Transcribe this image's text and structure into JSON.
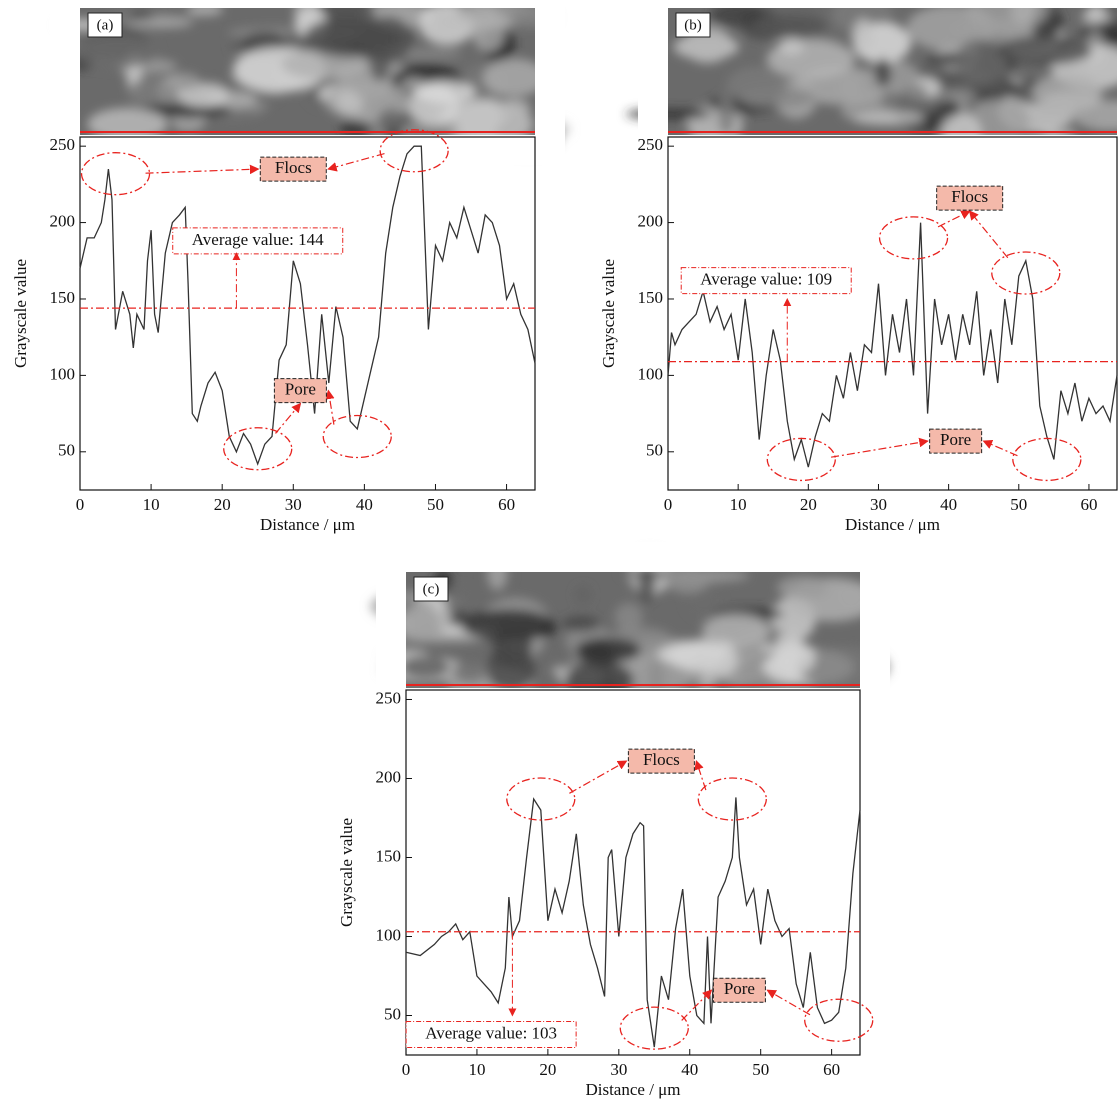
{
  "chart_data": [
    {
      "type": "line",
      "panel_label": "(a)",
      "x_label": "Distance / μm",
      "y_label": "Grayscale value",
      "color": "#333333",
      "x": [
        0,
        1,
        2,
        3,
        3.5,
        4,
        4.5,
        5,
        6,
        7,
        7.5,
        8,
        9,
        9.5,
        10,
        10.5,
        11,
        12,
        13,
        14,
        14.8,
        15.2,
        15.8,
        16.5,
        17,
        18,
        19,
        20,
        21,
        22,
        23,
        24,
        25,
        26,
        27,
        28,
        29,
        30,
        31,
        32,
        33,
        34,
        35,
        36,
        37,
        38,
        39,
        40,
        41,
        42,
        43,
        44,
        45,
        46,
        47,
        48,
        49,
        50,
        51,
        52,
        53,
        54,
        55,
        56,
        57,
        58,
        59,
        60,
        61,
        62,
        63,
        64
      ],
      "values": [
        170,
        190,
        190,
        200,
        215,
        235,
        215,
        130,
        155,
        140,
        118,
        140,
        130,
        175,
        195,
        140,
        128,
        180,
        200,
        205,
        210,
        160,
        75,
        70,
        80,
        95,
        102,
        90,
        60,
        50,
        62,
        55,
        42,
        55,
        60,
        110,
        120,
        175,
        160,
        120,
        75,
        140,
        95,
        145,
        125,
        70,
        65,
        85,
        105,
        125,
        180,
        210,
        230,
        245,
        250,
        250,
        130,
        185,
        175,
        200,
        190,
        210,
        195,
        180,
        205,
        200,
        185,
        150,
        160,
        140,
        130,
        108
      ],
      "xlim": [
        0,
        64
      ],
      "ylim": [
        25,
        256
      ],
      "xticks": [
        0,
        10,
        20,
        30,
        40,
        50,
        60
      ],
      "yticks": [
        50,
        100,
        150,
        200,
        250
      ],
      "average": {
        "value": 144,
        "label": "Average value: 144"
      },
      "annotations": [
        "Flocs",
        "Pore"
      ]
    },
    {
      "type": "line",
      "panel_label": "(b)",
      "x_label": "Distance / μm",
      "y_label": "Grayscale value",
      "color": "#333333",
      "x": [
        0,
        0.5,
        1,
        2,
        3,
        4,
        5,
        6,
        7,
        8,
        9,
        10,
        11,
        12,
        13,
        14,
        15,
        16,
        17,
        18,
        19,
        20,
        21,
        22,
        23,
        24,
        25,
        26,
        27,
        28,
        29,
        30,
        31,
        32,
        33,
        34,
        35,
        36,
        37,
        38,
        39,
        40,
        41,
        42,
        43,
        44,
        45,
        46,
        47,
        48,
        49,
        50,
        51,
        52,
        53,
        54,
        55,
        56,
        57,
        58,
        59,
        60,
        61,
        62,
        63,
        64
      ],
      "values": [
        100,
        128,
        120,
        130,
        135,
        140,
        155,
        135,
        145,
        130,
        140,
        110,
        150,
        115,
        58,
        100,
        130,
        110,
        70,
        45,
        58,
        40,
        60,
        75,
        70,
        100,
        85,
        115,
        90,
        120,
        115,
        160,
        100,
        140,
        115,
        150,
        100,
        200,
        75,
        150,
        120,
        140,
        110,
        140,
        120,
        155,
        100,
        130,
        95,
        150,
        120,
        165,
        175,
        150,
        80,
        60,
        45,
        90,
        75,
        95,
        70,
        85,
        75,
        80,
        70,
        100
      ],
      "xlim": [
        0,
        64
      ],
      "ylim": [
        25,
        256
      ],
      "xticks": [
        0,
        10,
        20,
        30,
        40,
        50,
        60
      ],
      "yticks": [
        50,
        100,
        150,
        200,
        250
      ],
      "average": {
        "value": 109,
        "label": "Average value: 109"
      },
      "annotations": [
        "Flocs",
        "Pore"
      ]
    },
    {
      "type": "line",
      "panel_label": "(c)",
      "x_label": "Distance / μm",
      "y_label": "Grayscale value",
      "color": "#333333",
      "x": [
        0,
        2,
        4,
        5,
        6,
        7,
        8,
        9,
        10,
        11,
        12,
        13,
        14,
        14.5,
        15,
        16,
        17,
        18,
        19,
        20,
        21,
        22,
        23,
        24,
        25,
        26,
        27,
        28,
        28.5,
        29,
        30,
        31,
        32,
        33,
        33.5,
        34,
        35,
        36,
        37,
        38,
        39,
        40,
        41,
        42,
        42.5,
        43,
        44,
        45,
        46,
        46.5,
        47,
        48,
        49,
        50,
        51,
        52,
        53,
        54,
        55,
        56,
        57,
        58,
        59,
        60,
        61,
        62,
        63,
        64
      ],
      "values": [
        90,
        88,
        95,
        100,
        103,
        108,
        98,
        103,
        75,
        70,
        65,
        58,
        80,
        125,
        100,
        110,
        150,
        187,
        180,
        110,
        130,
        115,
        135,
        165,
        120,
        95,
        80,
        62,
        150,
        155,
        100,
        150,
        165,
        172,
        170,
        60,
        30,
        75,
        60,
        105,
        130,
        75,
        50,
        45,
        100,
        45,
        125,
        135,
        150,
        188,
        150,
        120,
        130,
        95,
        130,
        110,
        100,
        105,
        70,
        55,
        90,
        55,
        45,
        47,
        52,
        80,
        140,
        180
      ],
      "xlim": [
        0,
        64
      ],
      "ylim": [
        25,
        256
      ],
      "xticks": [
        0,
        10,
        20,
        30,
        40,
        50,
        60
      ],
      "yticks": [
        50,
        100,
        150,
        200,
        250
      ],
      "average": {
        "value": 103,
        "label": "Average value: 103"
      },
      "annotations": [
        "Flocs",
        "Pore"
      ]
    }
  ]
}
